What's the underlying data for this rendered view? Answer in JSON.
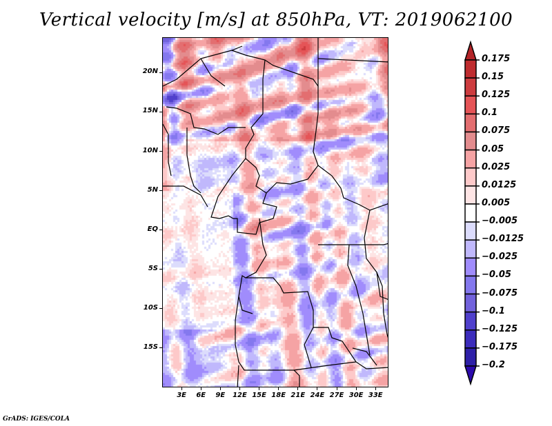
{
  "chart_data": {
    "type": "heatmap",
    "title": "Vertical velocity [m/s] at 850hPa, VT: 2019062100",
    "variable": "Vertical velocity",
    "units": "m/s",
    "level": "850hPa",
    "valid_time": "2019062100",
    "xlabel": "",
    "ylabel": "",
    "x_ticks": [
      "3E",
      "6E",
      "9E",
      "12E",
      "15E",
      "18E",
      "21E",
      "24E",
      "27E",
      "30E",
      "33E"
    ],
    "x_tick_values": [
      3,
      6,
      9,
      12,
      15,
      18,
      21,
      24,
      27,
      30,
      33
    ],
    "y_ticks": [
      "20N",
      "15N",
      "10N",
      "5N",
      "EQ",
      "5S",
      "10S",
      "15S"
    ],
    "y_tick_values": [
      20,
      15,
      10,
      5,
      0,
      -5,
      -10,
      -15
    ],
    "xlim": [
      0,
      35
    ],
    "ylim": [
      -20,
      24.5
    ],
    "colorbar": {
      "orientation": "vertical",
      "placement": "right",
      "extend": "both",
      "levels": [
        "0.175",
        "0.15",
        "0.125",
        "0.1",
        "0.075",
        "0.05",
        "0.025",
        "0.0125",
        "0.005",
        "-0.005",
        "-0.0125",
        "-0.025",
        "-0.05",
        "-0.075",
        "-0.1",
        "-0.125",
        "-0.175",
        "-0.2"
      ],
      "colors": [
        "#b32428",
        "#bf2c2f",
        "#cd3c3f",
        "#e55457",
        "#e36e70",
        "#e38c8e",
        "#f5a3a4",
        "#fdc9c9",
        "#fde4e4",
        "#ffffff",
        "#dcdcfc",
        "#c0b8fc",
        "#a08cfc",
        "#8478ee",
        "#7262dc",
        "#5040cc",
        "#3c2cbc",
        "#2e20a8",
        "#2c0aac"
      ]
    },
    "field_description": "Gridded vertical velocity field over Central Africa with country borders; strong positive (red) streaks in the Sahel north of 10N, mixed small-scale positive/negative cells elsewhere, weak values over the Atlantic west of the coast."
  },
  "credit": "GrADS: IGES/COLA"
}
